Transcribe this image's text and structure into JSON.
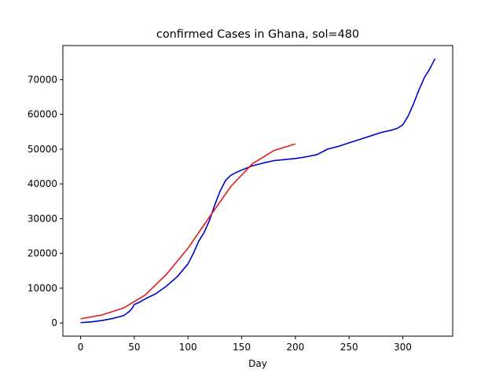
{
  "chart_data": {
    "type": "line",
    "title": "confirmed Cases in Ghana, sol=480",
    "xlabel": "Day",
    "ylabel": "",
    "xlim": [
      -16.5,
      346.5
    ],
    "ylim": [
      -3800,
      79800
    ],
    "xticks": [
      0,
      50,
      100,
      150,
      200,
      250,
      300
    ],
    "xtick_labels": [
      "0",
      "50",
      "100",
      "150",
      "200",
      "250",
      "300"
    ],
    "yticks": [
      0,
      10000,
      20000,
      30000,
      40000,
      50000,
      60000,
      70000
    ],
    "ytick_labels": [
      "0",
      "10000",
      "20000",
      "30000",
      "40000",
      "50000",
      "60000",
      "70000"
    ],
    "grid": false,
    "series": [
      {
        "color": "#0000cc",
        "x": [
          0,
          10,
          20,
          30,
          40,
          45,
          48,
          50,
          55,
          60,
          70,
          80,
          90,
          100,
          105,
          110,
          115,
          120,
          125,
          130,
          135,
          140,
          145,
          150,
          160,
          170,
          180,
          190,
          200,
          210,
          220,
          230,
          240,
          250,
          260,
          270,
          280,
          290,
          295,
          300,
          305,
          310,
          315,
          320,
          325,
          330
        ],
        "y": [
          100,
          300,
          700,
          1300,
          2100,
          3200,
          4200,
          5300,
          6000,
          6900,
          8400,
          10600,
          13300,
          17000,
          20000,
          23500,
          26000,
          29500,
          34000,
          38000,
          41000,
          42500,
          43300,
          44000,
          45200,
          46000,
          46700,
          47000,
          47300,
          47800,
          48400,
          50000,
          50800,
          51800,
          52800,
          53800,
          54800,
          55500,
          56000,
          57000,
          59500,
          63000,
          67000,
          70500,
          73000,
          76000
        ]
      },
      {
        "color": "#e31a1c",
        "x": [
          0,
          20,
          40,
          60,
          80,
          100,
          120,
          140,
          160,
          180,
          200
        ],
        "y": [
          1200,
          2300,
          4300,
          8000,
          14000,
          21500,
          30500,
          39300,
          45800,
          49600,
          51500
        ]
      }
    ]
  }
}
